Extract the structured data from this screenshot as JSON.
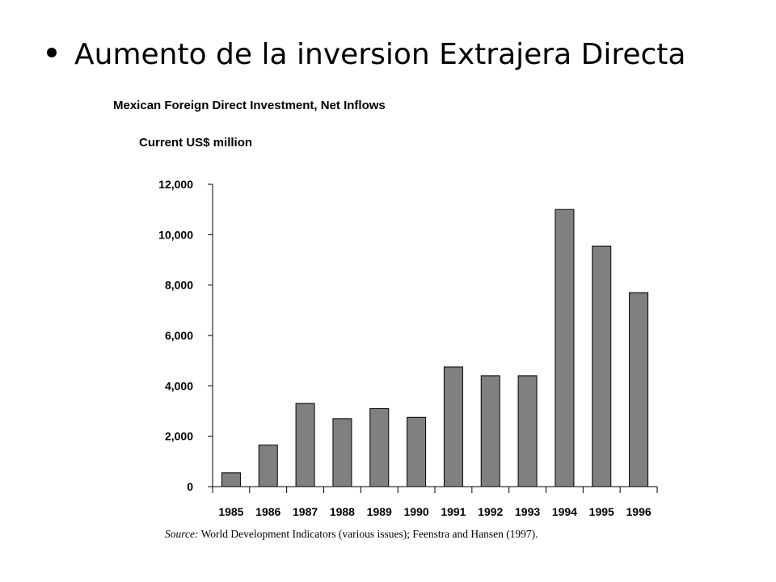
{
  "slide": {
    "bullet_text": "Aumento de la inversion Extrajera Directa"
  },
  "chart_data": {
    "type": "bar",
    "title": "Mexican Foreign Direct Investment, Net Inflows",
    "subtitle": "Current US$ million",
    "xlabel": "",
    "ylabel": "",
    "categories": [
      "1985",
      "1986",
      "1987",
      "1988",
      "1989",
      "1990",
      "1991",
      "1992",
      "1993",
      "1994",
      "1995",
      "1996"
    ],
    "values": [
      550,
      1650,
      3300,
      2700,
      3100,
      2750,
      4750,
      4400,
      4400,
      11000,
      9550,
      7700
    ],
    "ylim": [
      0,
      12000
    ],
    "yticks": [
      0,
      2000,
      4000,
      6000,
      8000,
      10000,
      12000
    ],
    "ytick_labels": [
      "0",
      "2,000",
      "4,000",
      "6,000",
      "8,000",
      "10,000",
      "12,000"
    ],
    "grid": false,
    "bar_color": "#808080",
    "source_label": "Source:",
    "source_text": "World Development Indicators (various issues); Feenstra and Hansen (1997)."
  }
}
